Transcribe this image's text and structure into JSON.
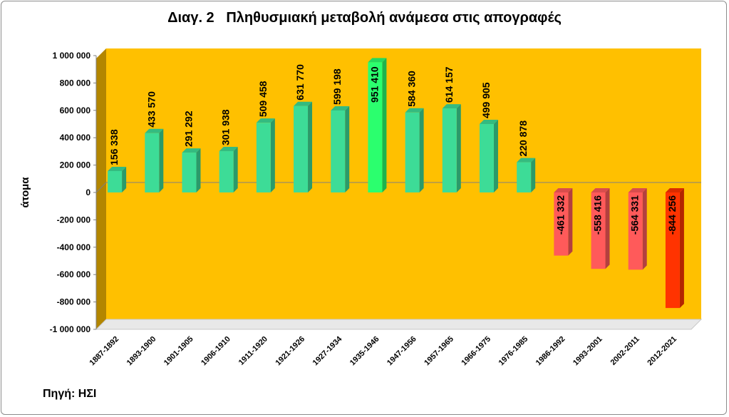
{
  "title": "Διαγ. 2   Πληθυσμιακή μεταβολή ανάμεσα στις απογραφές",
  "source": "Πηγή: ΗΣΙ",
  "chart_data": {
    "type": "bar",
    "title": "Διαγ. 2   Πληθυσμιακή μεταβολή ανάμεσα στις απογραφές",
    "ylabel": "άτομα",
    "xlabel": "",
    "ylim": [
      -1000000,
      1000000
    ],
    "yticks": [
      1000000,
      800000,
      600000,
      400000,
      200000,
      0,
      -200000,
      -400000,
      -600000,
      -800000,
      -1000000
    ],
    "ytick_labels": [
      "1 000 000",
      "800 000",
      "600 000",
      "400 000",
      "200 000",
      "0",
      "-200 000",
      "-400 000",
      "-600 000",
      "-800 000",
      "-1 000 000"
    ],
    "categories": [
      "1887-1892",
      "1893-1900",
      "1901-1905",
      "1906-1910",
      "1911-1920",
      "1921-1926",
      "1927-1934",
      "1935-1946",
      "1947-1956",
      "1957-1965",
      "1966-1975",
      "1976-1985",
      "1986-1992",
      "1993-2001",
      "2002-2011",
      "2012-2021"
    ],
    "values": [
      156338,
      433570,
      291292,
      301938,
      509458,
      631770,
      599198,
      951410,
      584360,
      614157,
      499905,
      220878,
      -461332,
      -558416,
      -564331,
      -844256
    ],
    "data_labels": [
      "156 338",
      "433 570",
      "291 292",
      "301 938",
      "509 458",
      "631 770",
      "599 198",
      "951 410",
      "584 360",
      "614 157",
      "499 905",
      "220 878",
      "-461 332",
      "-558 416",
      "-564 331",
      "-844 256"
    ],
    "bar_colors": [
      "#3ddc97",
      "#3ddc97",
      "#3ddc97",
      "#3ddc97",
      "#3ddc97",
      "#3ddc97",
      "#3ddc97",
      "#2bff6e",
      "#3ddc97",
      "#3ddc97",
      "#3ddc97",
      "#3ddc97",
      "#ff5a5a",
      "#ff5a5a",
      "#ff5a5a",
      "#ff3300"
    ],
    "plot_background": "#ffc000",
    "grid": false,
    "legend": "none"
  }
}
